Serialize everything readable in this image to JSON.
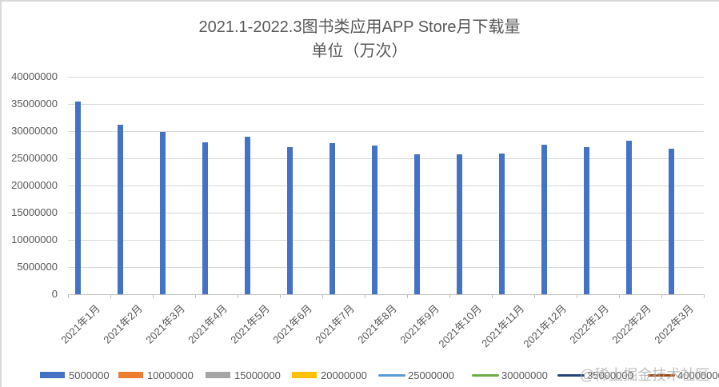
{
  "chart_data": {
    "type": "bar",
    "title": "2021.1-2022.3图书类应用APP Store月下载量",
    "subtitle": "单位（万次）",
    "xlabel": "",
    "ylabel": "",
    "ylim": [
      0,
      40000000
    ],
    "yticks": [
      0,
      5000000,
      10000000,
      15000000,
      20000000,
      25000000,
      30000000,
      35000000,
      40000000
    ],
    "ytick_labels": [
      "0",
      "5000000",
      "10000000",
      "15000000",
      "20000000",
      "25000000",
      "30000000",
      "35000000",
      "40000000"
    ],
    "grid": true,
    "legend_position": "bottom",
    "categories": [
      "2021年1月",
      "2021年2月",
      "2021年3月",
      "2021年4月",
      "2021年5月",
      "2021年6月",
      "2021年7月",
      "2021年8月",
      "2021年9月",
      "2021年10月",
      "2021年11月",
      "2021年12月",
      "2022年1月",
      "2022年2月",
      "2022年3月"
    ],
    "series": [
      {
        "name": "5000000",
        "color": "#4472c4",
        "marker": "bar",
        "values": [
          35500000,
          31200000,
          29900000,
          28000000,
          28900000,
          27000000,
          27800000,
          27300000,
          25800000,
          25800000,
          25900000,
          27500000,
          27000000,
          28300000,
          26700000
        ]
      },
      {
        "name": "10000000",
        "color": "#ed7d31",
        "marker": "bar",
        "values": []
      },
      {
        "name": "15000000",
        "color": "#a5a5a5",
        "marker": "bar",
        "values": []
      },
      {
        "name": "20000000",
        "color": "#ffc000",
        "marker": "bar",
        "values": []
      },
      {
        "name": "25000000",
        "color": "#5b9bd5",
        "marker": "line",
        "values": []
      },
      {
        "name": "30000000",
        "color": "#70ad47",
        "marker": "line",
        "values": []
      },
      {
        "name": "35000000",
        "color": "#264478",
        "marker": "line",
        "values": []
      },
      {
        "name": "40000000",
        "color": "#9e480e",
        "marker": "line",
        "values": []
      }
    ]
  },
  "watermark": "@稀土掘金技术社区"
}
